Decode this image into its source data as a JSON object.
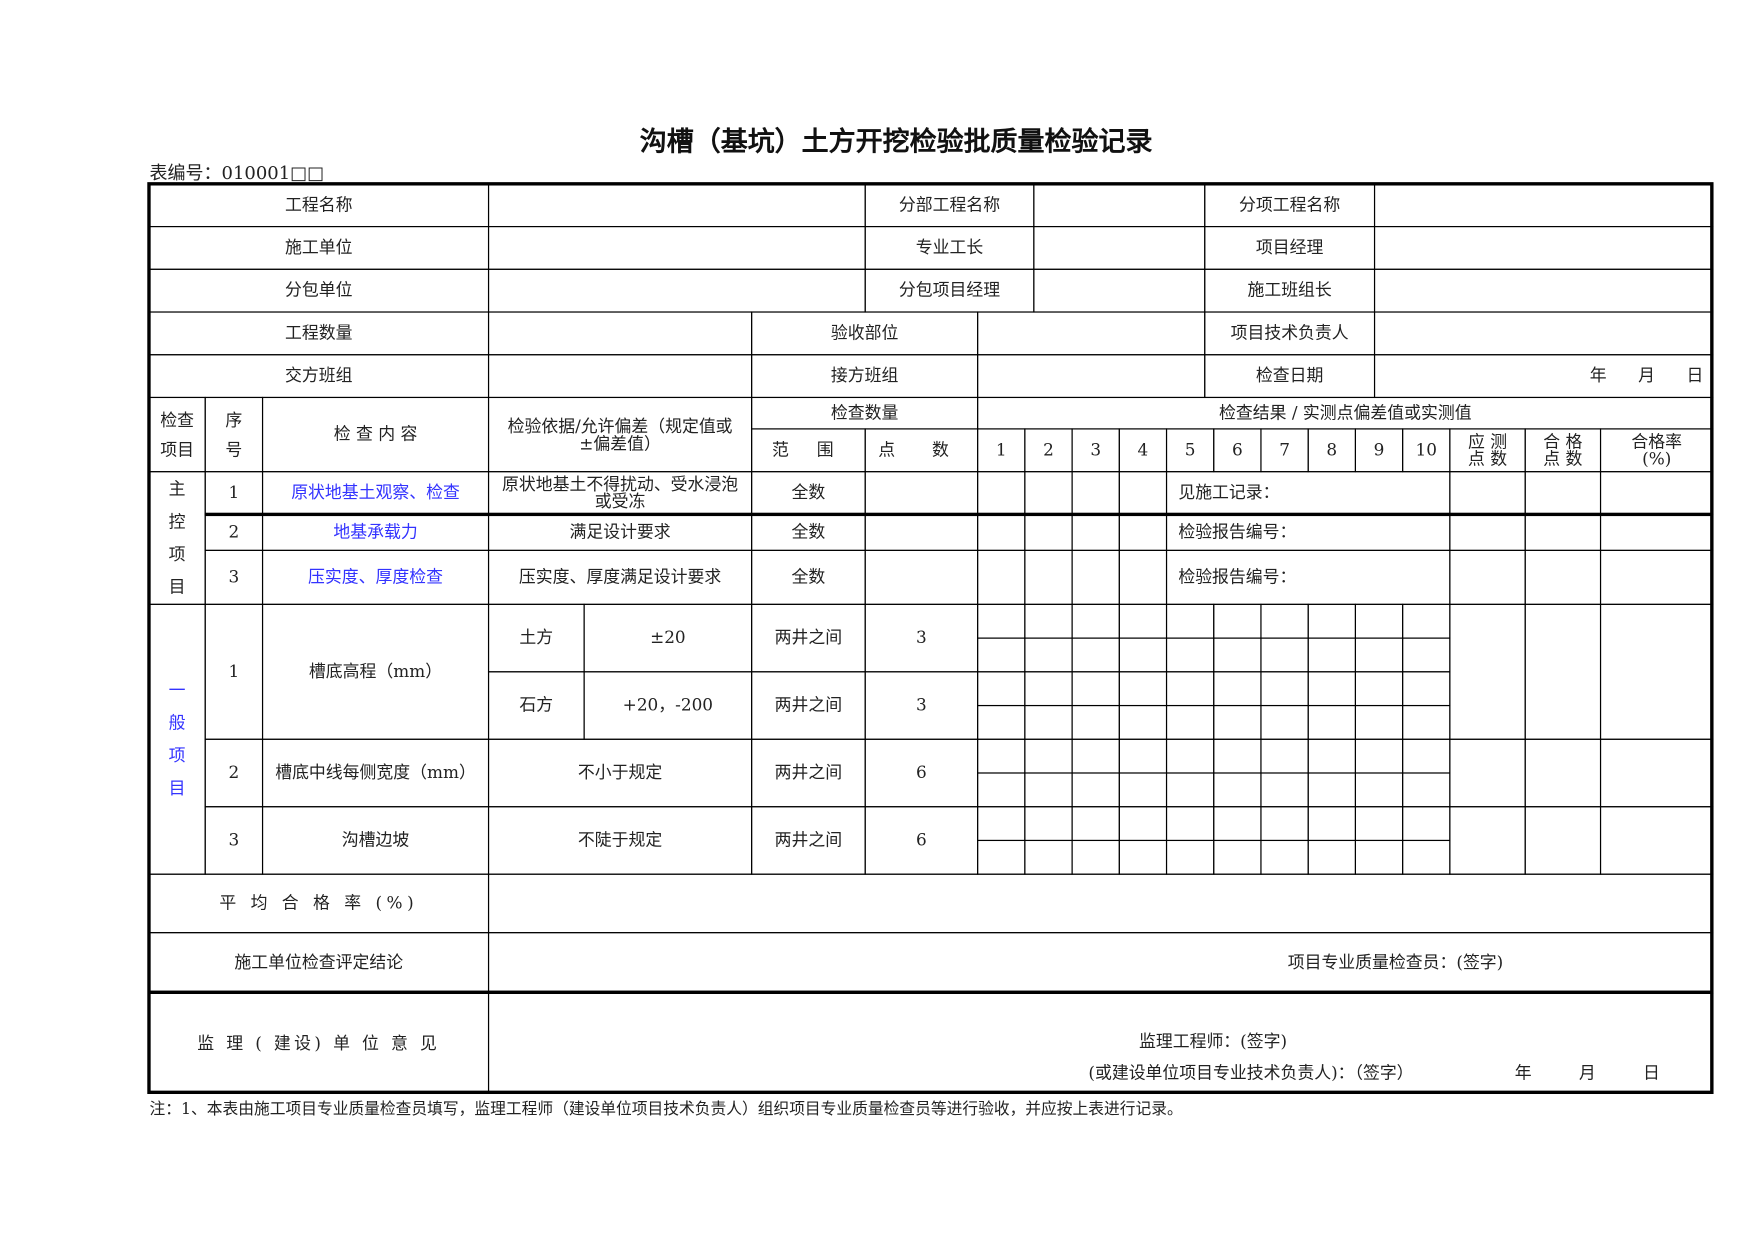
{
  "title": "沟槽（基坑）土方开挖检验批质量检验记录",
  "form_number": "表编号：010001□□",
  "info": {
    "project_name_label": "工程名称",
    "sub_division_name_label": "分部工程名称",
    "sub_item_name_label": "分项工程名称",
    "contractor_label": "施工单位",
    "foreman_label": "专业工长",
    "project_manager_label": "项目经理",
    "subcontractor_label": "分包单位",
    "sub_pm_label": "分包项目经理",
    "team_leader_label": "施工班组长",
    "quantity_label": "工程数量",
    "acceptance_part_label": "验收部位",
    "tech_lead_label": "项目技术负责人",
    "handover_team_label": "交方班组",
    "receiving_team_label": "接方班组",
    "inspection_date_label": "检查日期",
    "date_year": "年",
    "date_month": "月",
    "date_day": "日"
  },
  "header": {
    "category": "检查项目",
    "seq": "序号",
    "content": "检 查 内 容",
    "criterion": "检验依据/允许偏差（规定值或±偏差值）",
    "check_qty": "检查数量",
    "range": "范 围",
    "points": "点 数",
    "results": "检查结果 / 实测点偏差值或实测值",
    "point_cols": [
      "1",
      "2",
      "3",
      "4",
      "5",
      "6",
      "7",
      "8",
      "9",
      "10"
    ],
    "required_points": "应 测 点 数",
    "passed_points": "合 格 点 数",
    "pass_rate": "合格率 (%)"
  },
  "main_items": {
    "label": "主控项目",
    "rows": [
      {
        "seq": "1",
        "content": "原状地基土观察、检查",
        "criterion": "原状地基土不得扰动、受水浸泡或受冻",
        "range": "全数",
        "note": "见施工记录："
      },
      {
        "seq": "2",
        "content": "地基承载力",
        "criterion": "满足设计要求",
        "range": "全数",
        "note": "检验报告编号："
      },
      {
        "seq": "3",
        "content": "压实度、厚度检查",
        "criterion": "压实度、厚度满足设计要求",
        "range": "全数",
        "note": "检验报告编号："
      }
    ]
  },
  "general_items": {
    "label": "一般项目",
    "rows": [
      {
        "seq": "1",
        "content": "槽底高程（mm）",
        "sub": [
          {
            "type": "土方",
            "tolerance": "±20",
            "range": "两井之间",
            "points": "3"
          },
          {
            "type": "石方",
            "tolerance": "+20，-200",
            "range": "两井之间",
            "points": "3"
          }
        ]
      },
      {
        "seq": "2",
        "content": "槽底中线每侧宽度（mm）",
        "criterion": "不小于规定",
        "range": "两井之间",
        "points": "6"
      },
      {
        "seq": "3",
        "content": "沟槽边坡",
        "criterion": "不陡于规定",
        "range": "两井之间",
        "points": "6"
      }
    ]
  },
  "footer": {
    "avg_rate_label": "平 均 合 格 率 (%)",
    "conclusion_label": "施工单位检查评定结论",
    "conclusion_sign": "项目专业质量检查员：(签字)",
    "supervision_label": "监 理 ( 建设) 单 位 意 见",
    "supervisor_sign": "监理工程师：(签字)",
    "owner_sign": "(或建设单位项目专业技术负责人)：（签字）",
    "date_year": "年",
    "date_month": "月",
    "date_day": "日"
  },
  "note": "注：1、本表由施工项目专业质量检查员填写，监理工程师（建设单位项目技术负责人）组织项目专业质量检查员等进行验收，并应按上表进行记录。",
  "colors": {
    "link_text": "#3333ff",
    "border": "#000000"
  }
}
